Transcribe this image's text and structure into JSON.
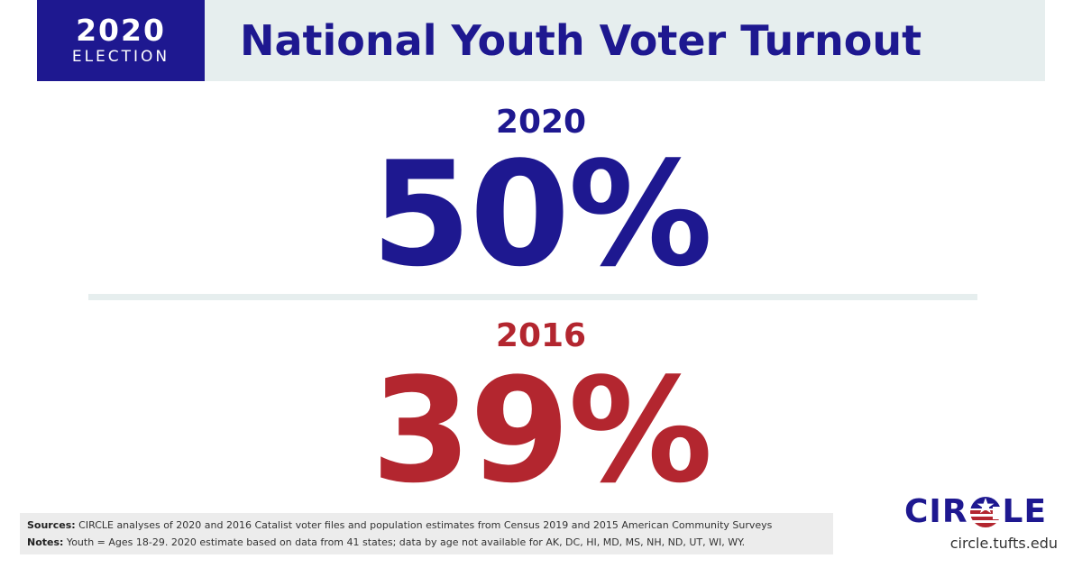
{
  "header": {
    "badge_year": "2020",
    "badge_label": "ELECTION",
    "title": "National Youth Voter Turnout"
  },
  "stats": [
    {
      "year": "2020",
      "value": "50%",
      "color": "#1e1890"
    },
    {
      "year": "2016",
      "value": "39%",
      "color": "#b3262f"
    }
  ],
  "footer": {
    "sources_label": "Sources:",
    "sources_text": " CIRCLE analyses of 2020 and 2016 Catalist voter files and population estimates from Census 2019 and 2015 American Community Surveys",
    "notes_label": "Notes:",
    "notes_text": " Youth = Ages 18-29. 2020 estimate based on data from 41 states; data by age not available for AK, DC, HI, MD, MS, NH, ND, UT, WI, WY."
  },
  "logo": {
    "text_left": "CIR",
    "text_right": "LE",
    "flag_icon": "flag-star-stripes-icon",
    "url": "circle.tufts.edu"
  },
  "colors": {
    "brand_blue": "#1e1890",
    "brand_red": "#b3262f",
    "band_gray": "#e6eeee"
  }
}
